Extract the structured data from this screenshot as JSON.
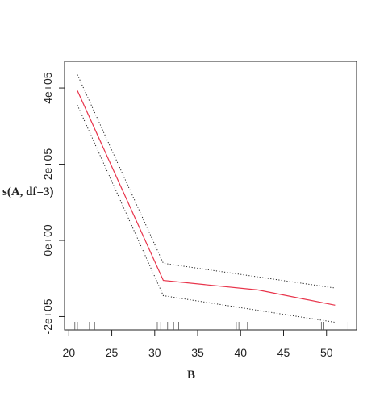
{
  "chart_data": {
    "type": "line",
    "title": "",
    "xlabel": "B",
    "ylabel": "s(A, df=3)",
    "xlim": [
      19.5,
      53.5
    ],
    "ylim": [
      -235000,
      470000
    ],
    "x_ticks": [
      20,
      25,
      30,
      35,
      40,
      45,
      50
    ],
    "x_tick_labels": [
      "20",
      "25",
      "30",
      "35",
      "40",
      "45",
      "50"
    ],
    "y_ticks": [
      -200000,
      0,
      200000,
      400000
    ],
    "y_tick_labels": [
      "-2e+05",
      "0e+00",
      "2e+05",
      "4e+05"
    ],
    "grid": false,
    "legend": "none",
    "series": [
      {
        "role": "fit",
        "color": "#e8334a",
        "style": "solid",
        "x": [
          21,
          31,
          42,
          51
        ],
        "y": [
          393000,
          -105000,
          -130000,
          -170000
        ]
      },
      {
        "role": "upper",
        "color": "#222222",
        "style": "dotted",
        "x": [
          21,
          31,
          51
        ],
        "y": [
          435000,
          -60000,
          -125000
        ]
      },
      {
        "role": "lower",
        "color": "#222222",
        "style": "dotted",
        "x": [
          21,
          31,
          51
        ],
        "y": [
          355000,
          -145000,
          -215000
        ]
      }
    ],
    "rug_x": [
      20.7,
      21.0,
      22.4,
      23.0,
      30.3,
      30.7,
      31.5,
      32.2,
      32.8,
      39.5,
      39.8,
      40.8,
      49.4,
      49.7,
      52.5
    ]
  }
}
